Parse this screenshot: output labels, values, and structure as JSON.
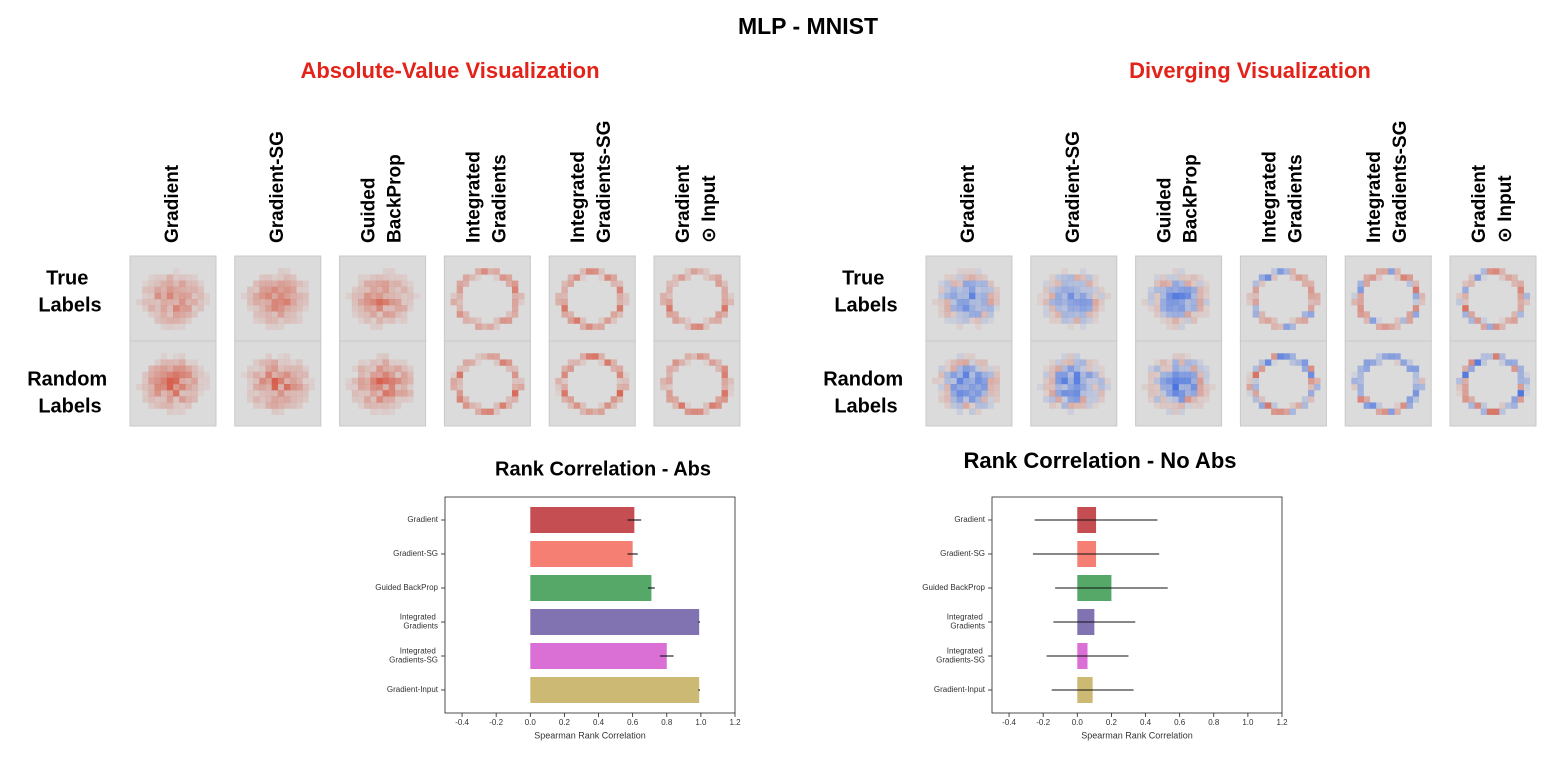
{
  "figure": {
    "title": "MLP - MNIST",
    "panels": [
      {
        "title": "Absolute-Value Visualization"
      },
      {
        "title": "Diverging Visualization"
      }
    ],
    "columns": [
      "Gradient",
      "Gradient-SG",
      "Guided BackProp",
      "Integrated Gradients",
      "Integrated Gradients-SG",
      "Gradient ⊙ Input"
    ],
    "rows": [
      "True Labels",
      "Random Labels"
    ]
  },
  "chart_data": [
    {
      "type": "bar",
      "orientation": "horizontal",
      "title": "Rank Correlation - Abs",
      "x_label": "Spearman Rank Correlation",
      "categories": [
        "Gradient",
        "Gradient-SG",
        "Guided BackProp",
        "Integrated Gradients",
        "Integrated Gradients-SG",
        "Gradient-Input"
      ],
      "values": [
        0.61,
        0.6,
        0.71,
        0.99,
        0.8,
        0.99
      ],
      "errors": [
        0.04,
        0.03,
        0.02,
        0.005,
        0.04,
        0.005
      ],
      "colors": [
        "#c44e52",
        "#f47f72",
        "#55a868",
        "#8172b2",
        "#da70d6",
        "#ccb974"
      ],
      "xlim": [
        -0.5,
        1.2
      ],
      "xticks": [
        -0.4,
        -0.2,
        {
          "value": 0,
          "label": "0.0"
        },
        0.2,
        0.4,
        0.6,
        0.8,
        {
          "value": 1,
          "label": "1.0"
        },
        1.2
      ]
    },
    {
      "type": "bar",
      "orientation": "horizontal",
      "title": "Rank Correlation - No Abs",
      "x_label": "Spearman Rank Correlation",
      "categories": [
        "Gradient",
        "Gradient-SG",
        "Guided BackProp",
        "Integrated Gradients",
        "Integrated Gradients-SG",
        "Gradient-Input"
      ],
      "values": [
        0.11,
        0.11,
        0.2,
        0.1,
        0.06,
        0.09
      ],
      "errors": [
        0.36,
        0.37,
        0.33,
        0.24,
        0.24,
        0.24
      ],
      "colors": [
        "#c44e52",
        "#f47f72",
        "#55a868",
        "#8172b2",
        "#da70d6",
        "#ccb974"
      ],
      "xlim": [
        -0.5,
        1.2
      ],
      "xticks": [
        -0.4,
        -0.2,
        {
          "value": 0,
          "label": "0.0"
        },
        0.2,
        0.4,
        0.6,
        0.8,
        {
          "value": 1,
          "label": "1.0"
        },
        1.2
      ]
    }
  ]
}
